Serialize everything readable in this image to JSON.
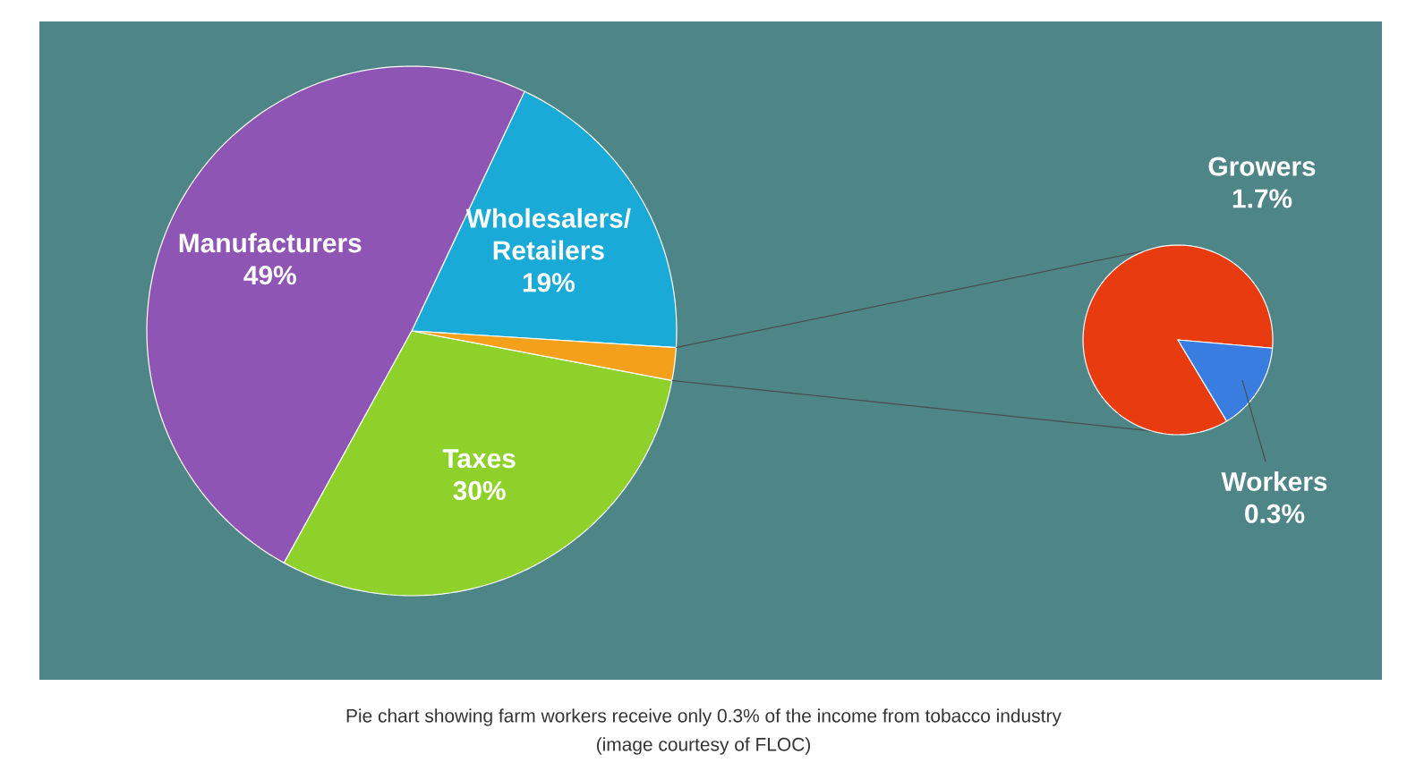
{
  "chart_data": [
    {
      "type": "pie",
      "categories": [
        "Wholesalers/ Retailers",
        "Manufacturers",
        "Taxes",
        null
      ],
      "values": [
        19,
        49,
        30,
        2
      ],
      "colors": [
        "#1aaad8",
        "#8e55b5",
        "#8ed12a",
        "#f5a01a"
      ],
      "value_labels": [
        "19%",
        "49%",
        "30%",
        null
      ],
      "annotations": [
        "Pie chart showing farm workers receive only 0.3% of the income from tobacco industry",
        "(image courtesy of FLOC)"
      ]
    },
    {
      "type": "pie",
      "categories": [
        "Growers",
        "Workers"
      ],
      "values": [
        1.7,
        0.3
      ],
      "colors": [
        "#e83c10",
        "#3a7de0"
      ],
      "value_labels": [
        "1.7%",
        "0.3%"
      ]
    }
  ]
}
